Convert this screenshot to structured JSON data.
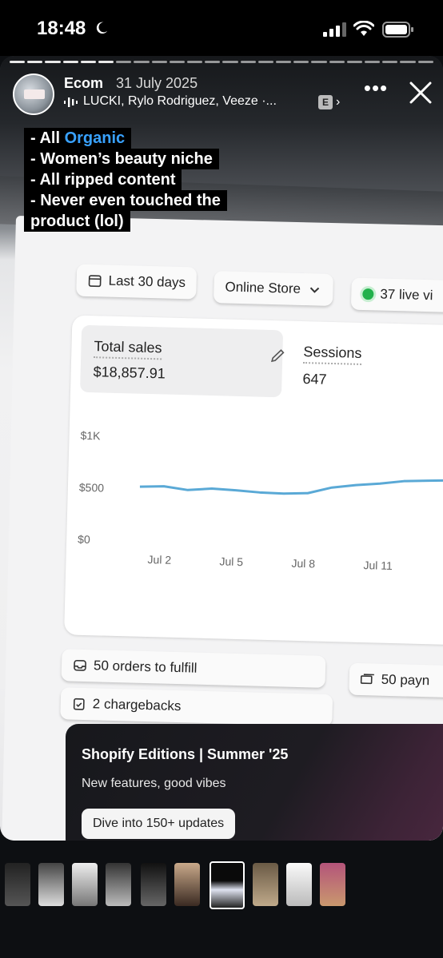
{
  "status_bar": {
    "time": "18:48"
  },
  "story": {
    "username": "Ecom",
    "date": "31 July 2025",
    "music": "LUCKI, Rylo Rodriguez, Veeze ·...",
    "explicit": "E",
    "progress_total": 24,
    "progress_done": 6
  },
  "caption": {
    "line1_prefix": "- All ",
    "line1_highlight": "Organic",
    "line2": "- Women’s beauty niche",
    "line3": "- All ripped content",
    "line4": "- Never even touched the",
    "line5": "product (lol)",
    "highlight_color": "#39a2ff"
  },
  "dashboard": {
    "date_filter": "Last 30 days",
    "channel_filter": "Online Store",
    "live_visitors": "37 live vi",
    "total_sales_label": "Total sales",
    "total_sales_value": "$18,857.91",
    "sessions_label": "Sessions",
    "sessions_value": "647",
    "orders_to_fulfill": "50 orders to fulfill",
    "payments": "50 payn",
    "chargebacks": "2 chargebacks",
    "banner_title": "Shopify Editions | Summer '25",
    "banner_subtitle": "New features, good vibes",
    "banner_button": "Dive into 150+ updates"
  },
  "chart_data": {
    "type": "line",
    "x": [
      "Jul 1",
      "Jul 2",
      "Jul 3",
      "Jul 4",
      "Jul 5",
      "Jul 6",
      "Jul 7",
      "Jul 8",
      "Jul 9",
      "Jul 10",
      "Jul 11",
      "Jul 12",
      "Jul 13",
      "Jul 14"
    ],
    "x_tick_labels": [
      "Jul 2",
      "Jul 5",
      "Jul 8",
      "Jul 11"
    ],
    "y_tick_labels": [
      "$1K",
      "$500",
      "$0"
    ],
    "values": [
      520,
      530,
      500,
      520,
      510,
      495,
      490,
      500,
      560,
      590,
      610,
      640,
      650,
      660
    ],
    "ylim": [
      0,
      1000
    ],
    "color": "#5aa9d6"
  }
}
